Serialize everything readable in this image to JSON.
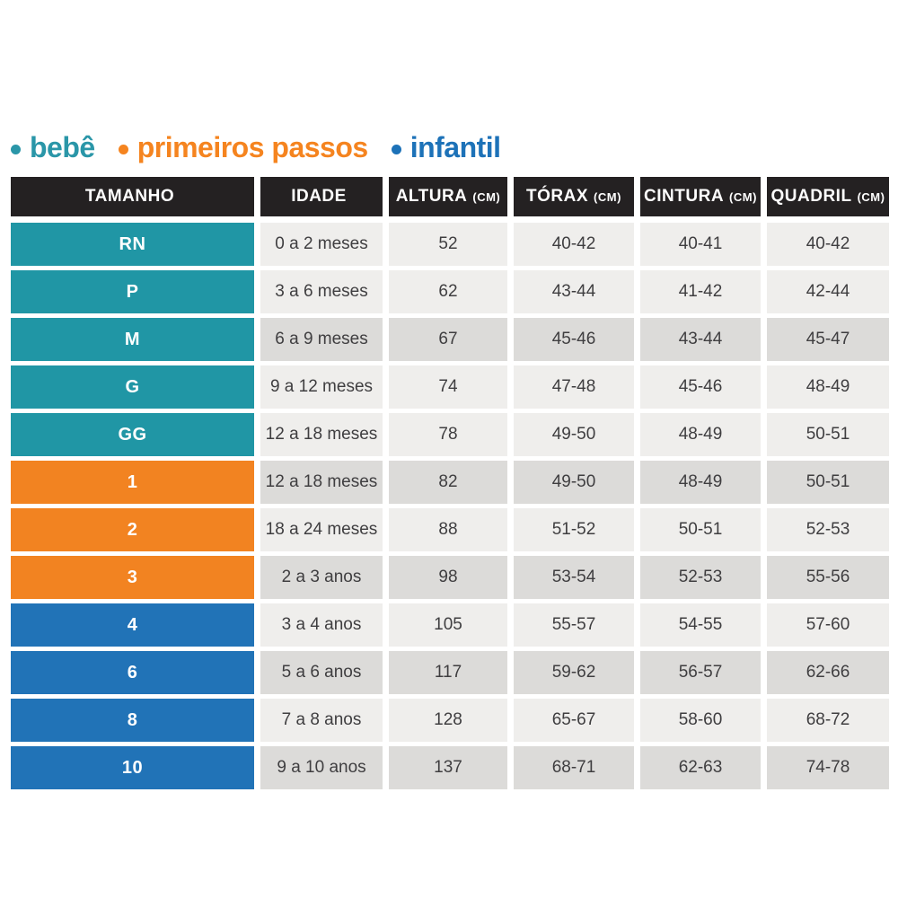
{
  "colors": {
    "teal": "#2096A5",
    "orange": "#F28321",
    "blue": "#2173B7",
    "legend_teal": "#2A96A8",
    "legend_orange": "#F5841F",
    "legend_blue": "#1D72B8",
    "header_bg": "#242122",
    "row_light": "#EFEEEC",
    "row_dark": "#DCDBD9",
    "cell_text": "#3F3E40"
  },
  "chart_data": {
    "type": "table",
    "legend": [
      {
        "label": "bebê",
        "color": "#2A96A8"
      },
      {
        "label": "primeiros passos",
        "color": "#F5841F"
      },
      {
        "label": "infantil",
        "color": "#1D72B8"
      }
    ],
    "columns": [
      {
        "label": "TAMANHO",
        "unit": ""
      },
      {
        "label": "IDADE",
        "unit": ""
      },
      {
        "label": "ALTURA",
        "unit": "(CM)"
      },
      {
        "label": "TÓRAX",
        "unit": "(CM)"
      },
      {
        "label": "CINTURA",
        "unit": "(CM)"
      },
      {
        "label": "QUADRIL",
        "unit": "(CM)"
      }
    ],
    "rows": [
      {
        "group": "bebê",
        "size": "RN",
        "idade": "0 a 2 meses",
        "altura": "52",
        "torax": "40-42",
        "cintura": "40-41",
        "quadril": "40-42"
      },
      {
        "group": "bebê",
        "size": "P",
        "idade": "3 a 6 meses",
        "altura": "62",
        "torax": "43-44",
        "cintura": "41-42",
        "quadril": "42-44"
      },
      {
        "group": "bebê",
        "size": "M",
        "idade": "6 a 9 meses",
        "altura": "67",
        "torax": "45-46",
        "cintura": "43-44",
        "quadril": "45-47"
      },
      {
        "group": "bebê",
        "size": "G",
        "idade": "9 a 12 meses",
        "altura": "74",
        "torax": "47-48",
        "cintura": "45-46",
        "quadril": "48-49"
      },
      {
        "group": "bebê",
        "size": "GG",
        "idade": "12 a 18 meses",
        "altura": "78",
        "torax": "49-50",
        "cintura": "48-49",
        "quadril": "50-51"
      },
      {
        "group": "primeiros passos",
        "size": "1",
        "idade": "12 a 18 meses",
        "altura": "82",
        "torax": "49-50",
        "cintura": "48-49",
        "quadril": "50-51"
      },
      {
        "group": "primeiros passos",
        "size": "2",
        "idade": "18 a 24 meses",
        "altura": "88",
        "torax": "51-52",
        "cintura": "50-51",
        "quadril": "52-53"
      },
      {
        "group": "primeiros passos",
        "size": "3",
        "idade": "2 a 3 anos",
        "altura": "98",
        "torax": "53-54",
        "cintura": "52-53",
        "quadril": "55-56"
      },
      {
        "group": "infantil",
        "size": "4",
        "idade": "3 a 4 anos",
        "altura": "105",
        "torax": "55-57",
        "cintura": "54-55",
        "quadril": "57-60"
      },
      {
        "group": "infantil",
        "size": "6",
        "idade": "5 a 6 anos",
        "altura": "117",
        "torax": "59-62",
        "cintura": "56-57",
        "quadril": "62-66"
      },
      {
        "group": "infantil",
        "size": "8",
        "idade": "7 a 8 anos",
        "altura": "128",
        "torax": "65-67",
        "cintura": "58-60",
        "quadril": "68-72"
      },
      {
        "group": "infantil",
        "size": "10",
        "idade": "9 a 10 anos",
        "altura": "137",
        "torax": "68-71",
        "cintura": "62-63",
        "quadril": "74-78"
      }
    ]
  }
}
